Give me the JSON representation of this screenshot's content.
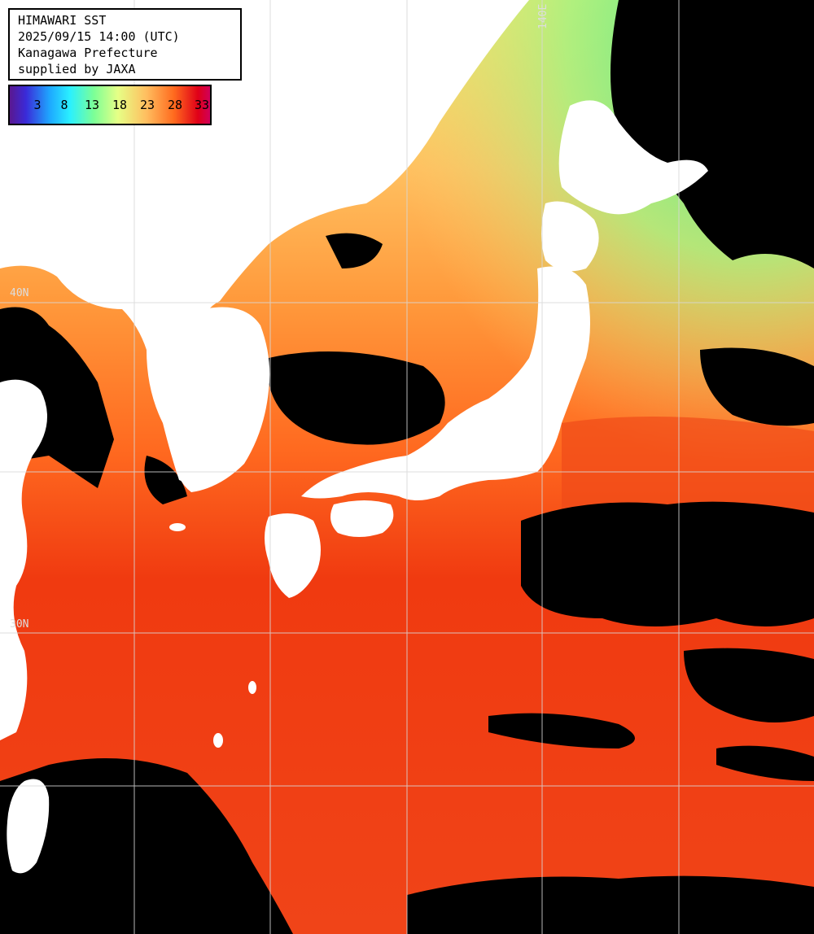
{
  "info": {
    "title": "HIMAWARI SST",
    "datetime": "2025/09/15 14:00 (UTC)",
    "region": "Kanagawa Prefecture",
    "credit": "supplied by JAXA"
  },
  "legend": {
    "labels": [
      "3",
      "8",
      "13",
      "18",
      "23",
      "28",
      "33"
    ],
    "colors": {
      "cold": "#5a1890",
      "cool": "#1ea8ff",
      "mild": "#7cff96",
      "warm": "#ffbf60",
      "hot": "#e00018"
    }
  },
  "grid_labels": {
    "lat_40": "40N",
    "lat_30": "30N",
    "lon_140": "140E"
  },
  "colors": {
    "land": "#ffffff",
    "cloud": "#000000",
    "grid": "#d8d8d8",
    "sea_north": "#ffd070",
    "sea_central": "#ff8a2a",
    "sea_south": "#f03a10"
  }
}
